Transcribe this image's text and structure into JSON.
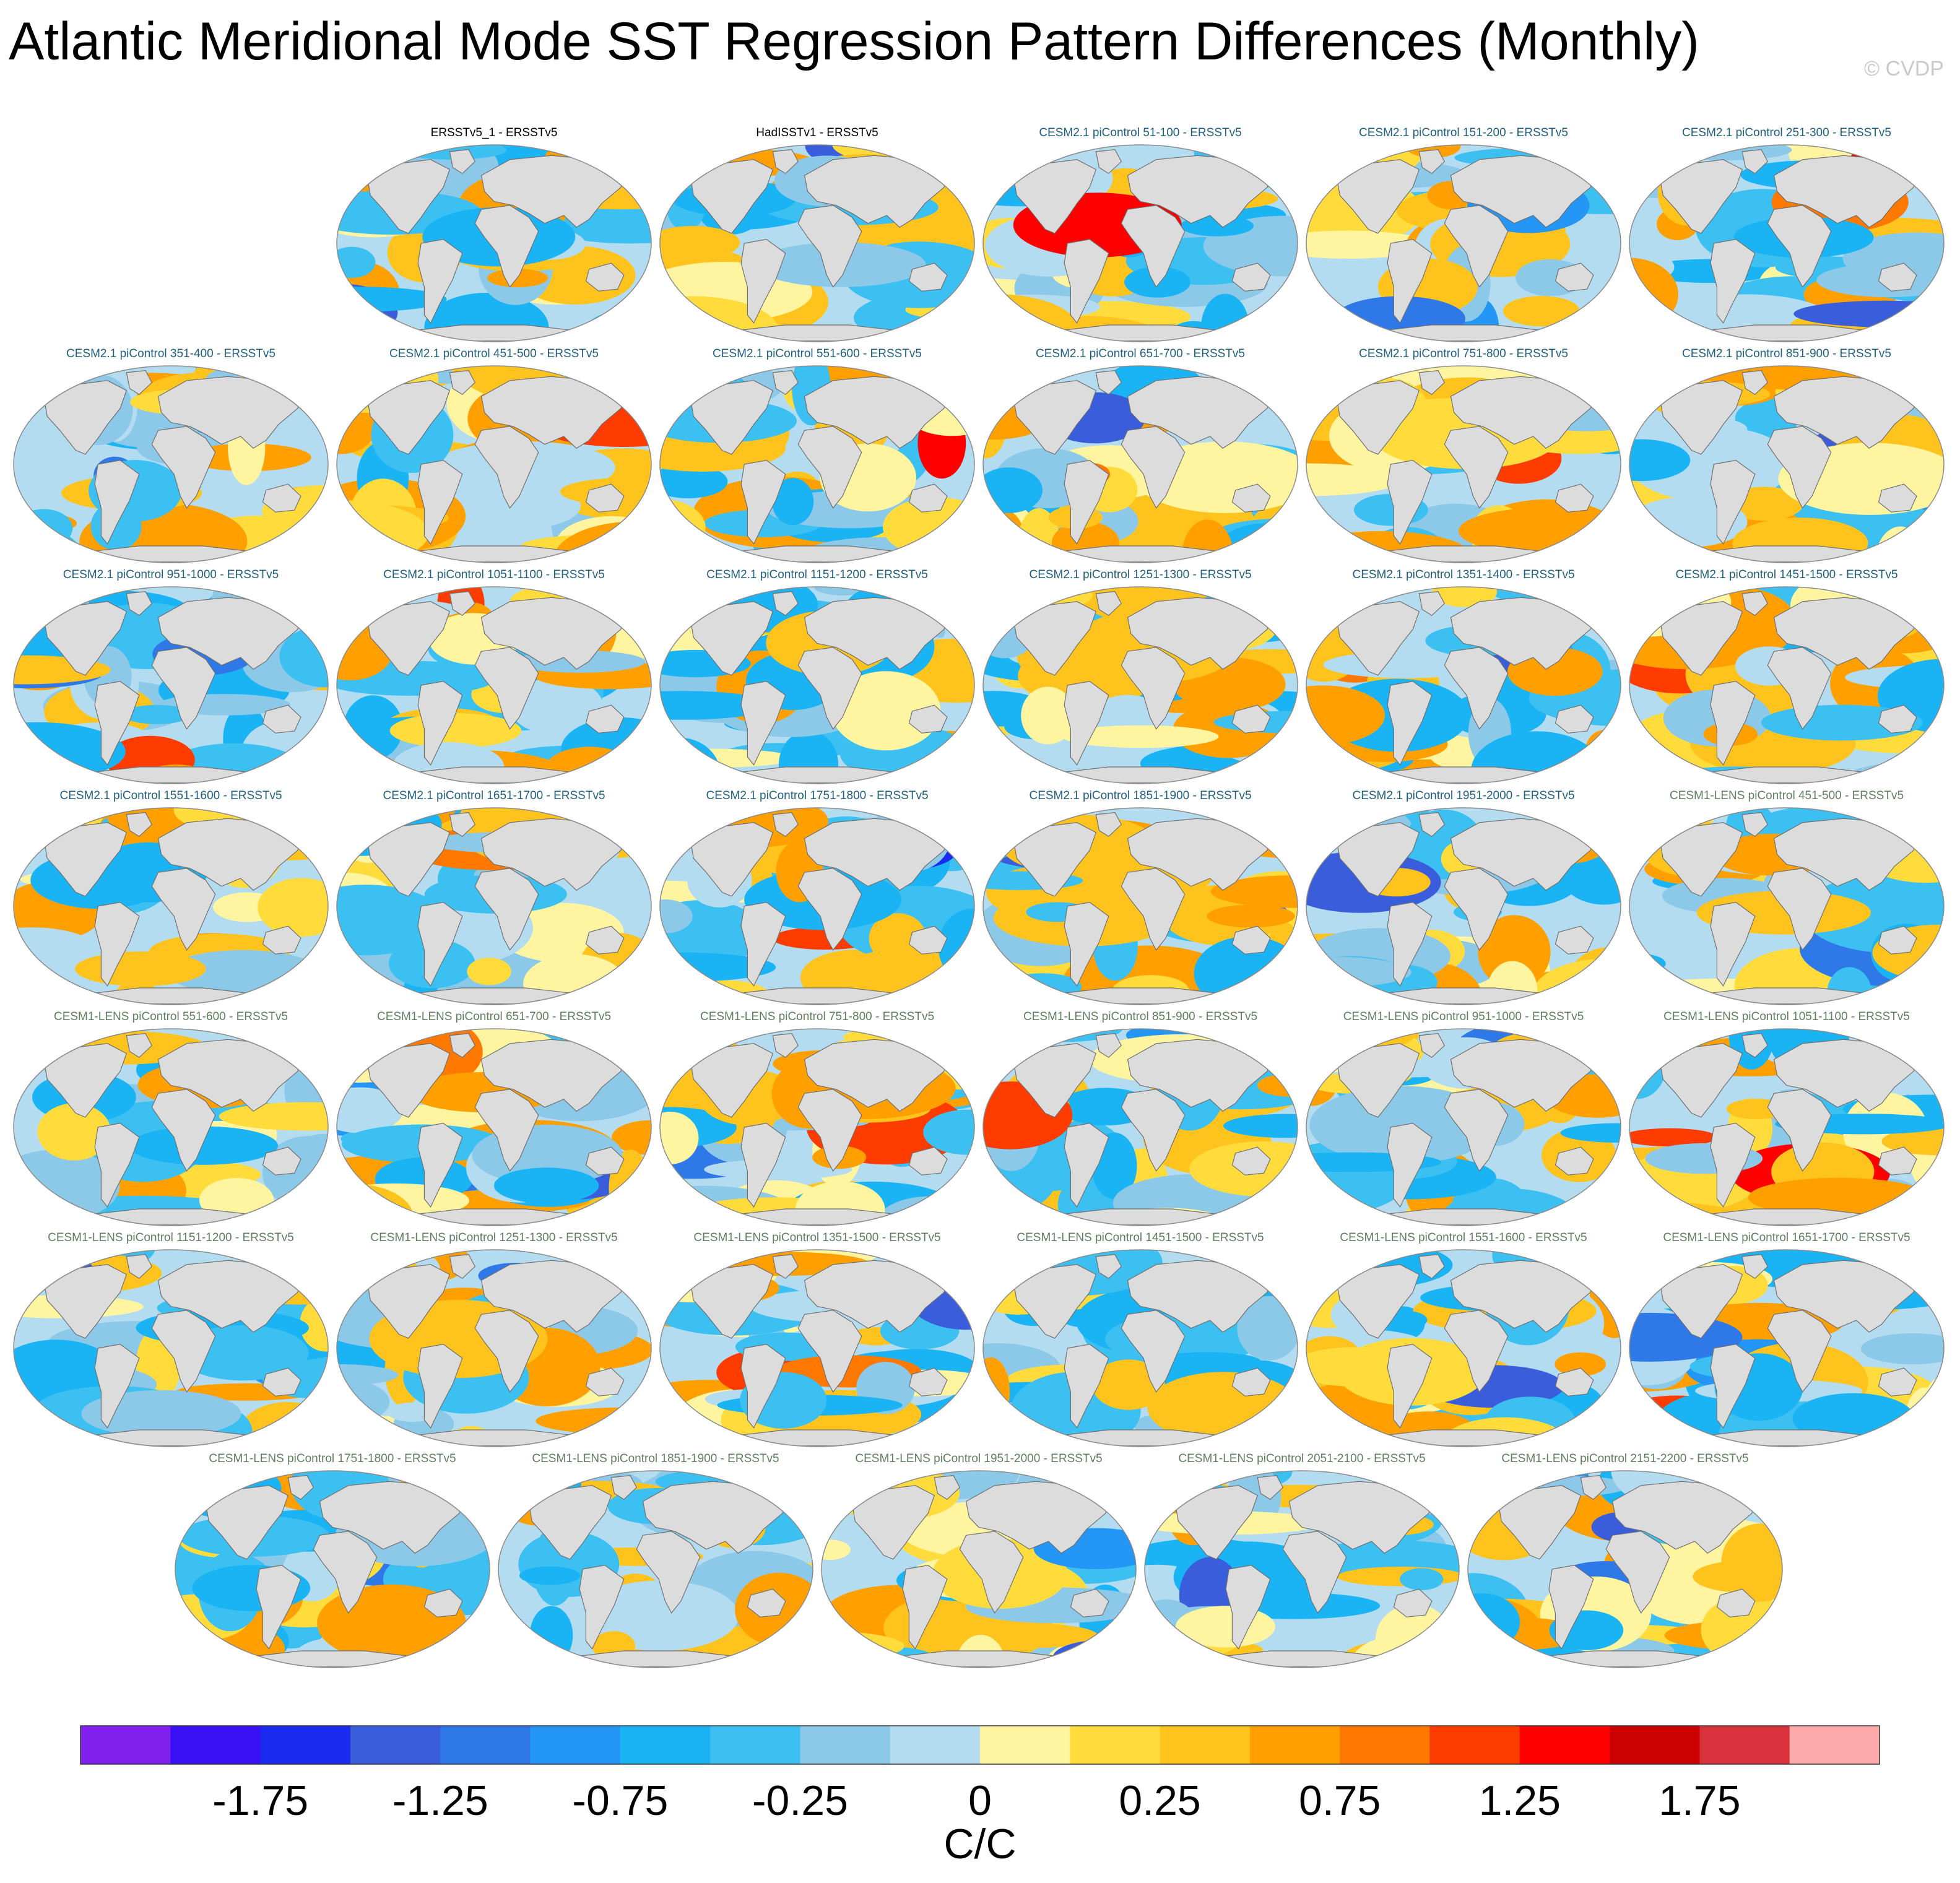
{
  "chart_data": {
    "type": "heatmap",
    "title": "Atlantic Meridional Mode SST Regression Pattern Differences (Monthly)",
    "watermark": "© CVDP",
    "units": "C/C",
    "colorbar": {
      "levels": [
        -2.0,
        -1.75,
        -1.5,
        -1.25,
        -1.0,
        -0.75,
        -0.5,
        -0.25,
        -0.1,
        0.0,
        0.1,
        0.25,
        0.5,
        0.75,
        1.0,
        1.25,
        1.5,
        1.75,
        2.0
      ],
      "tick_labels": [
        "-1.75",
        "-1.25",
        "-0.75",
        "-0.25",
        "0",
        "0.25",
        "0.75",
        "1.25",
        "1.75"
      ],
      "colors": [
        "#8220f0",
        "#3a10f5",
        "#1a2af0",
        "#3a5ddc",
        "#2f78e8",
        "#2496f5",
        "#1ab4f5",
        "#3cc0f2",
        "#8cc8e8",
        "#b4dcf0",
        "#fff5a0",
        "#ffdc3c",
        "#ffc31e",
        "#ffa000",
        "#ff7800",
        "#ff3c00",
        "#ff0000",
        "#cc0000",
        "#d8323c",
        "#ffaaaa"
      ]
    },
    "panels": [
      {
        "title": "ERSSTv5_1 - ERSSTv5",
        "group": "obs"
      },
      {
        "title": "HadISSTv1 - ERSSTv5",
        "group": "obs"
      },
      {
        "title": "CESM2.1 piControl 51-100 - ERSSTv5",
        "group": "cesm2"
      },
      {
        "title": "CESM2.1 piControl 151-200 - ERSSTv5",
        "group": "cesm2"
      },
      {
        "title": "CESM2.1 piControl 251-300 - ERSSTv5",
        "group": "cesm2"
      },
      {
        "title": "CESM2.1 piControl 351-400 - ERSSTv5",
        "group": "cesm2"
      },
      {
        "title": "CESM2.1 piControl 451-500 - ERSSTv5",
        "group": "cesm2"
      },
      {
        "title": "CESM2.1 piControl 551-600 - ERSSTv5",
        "group": "cesm2"
      },
      {
        "title": "CESM2.1 piControl 651-700 - ERSSTv5",
        "group": "cesm2"
      },
      {
        "title": "CESM2.1 piControl 751-800 - ERSSTv5",
        "group": "cesm2"
      },
      {
        "title": "CESM2.1 piControl 851-900 - ERSSTv5",
        "group": "cesm2"
      },
      {
        "title": "CESM2.1 piControl 951-1000 - ERSSTv5",
        "group": "cesm2"
      },
      {
        "title": "CESM2.1 piControl 1051-1100 - ERSSTv5",
        "group": "cesm2"
      },
      {
        "title": "CESM2.1 piControl 1151-1200 - ERSSTv5",
        "group": "cesm2"
      },
      {
        "title": "CESM2.1 piControl 1251-1300 - ERSSTv5",
        "group": "cesm2"
      },
      {
        "title": "CESM2.1 piControl 1351-1400 - ERSSTv5",
        "group": "cesm2"
      },
      {
        "title": "CESM2.1 piControl 1451-1500 - ERSSTv5",
        "group": "cesm2"
      },
      {
        "title": "CESM2.1 piControl 1551-1600 - ERSSTv5",
        "group": "cesm2"
      },
      {
        "title": "CESM2.1 piControl 1651-1700 - ERSSTv5",
        "group": "cesm2"
      },
      {
        "title": "CESM2.1 piControl 1751-1800 - ERSSTv5",
        "group": "cesm2"
      },
      {
        "title": "CESM2.1 piControl 1851-1900 - ERSSTv5",
        "group": "cesm2"
      },
      {
        "title": "CESM2.1 piControl 1951-2000 - ERSSTv5",
        "group": "cesm2"
      },
      {
        "title": "CESM1-LENS piControl 451-500 - ERSSTv5",
        "group": "cesm1"
      },
      {
        "title": "CESM1-LENS piControl 551-600 - ERSSTv5",
        "group": "cesm1"
      },
      {
        "title": "CESM1-LENS piControl 651-700 - ERSSTv5",
        "group": "cesm1"
      },
      {
        "title": "CESM1-LENS piControl 751-800 - ERSSTv5",
        "group": "cesm1"
      },
      {
        "title": "CESM1-LENS piControl 851-900 - ERSSTv5",
        "group": "cesm1"
      },
      {
        "title": "CESM1-LENS piControl 951-1000 - ERSSTv5",
        "group": "cesm1"
      },
      {
        "title": "CESM1-LENS piControl 1051-1100 - ERSSTv5",
        "group": "cesm1"
      },
      {
        "title": "CESM1-LENS piControl 1151-1200 - ERSSTv5",
        "group": "cesm1"
      },
      {
        "title": "CESM1-LENS piControl 1251-1300 - ERSSTv5",
        "group": "cesm1"
      },
      {
        "title": "CESM1-LENS piControl 1351-1500 - ERSSTv5",
        "group": "cesm1"
      },
      {
        "title": "CESM1-LENS piControl 1451-1500 - ERSSTv5",
        "group": "cesm1"
      },
      {
        "title": "CESM1-LENS piControl 1551-1600 - ERSSTv5",
        "group": "cesm1"
      },
      {
        "title": "CESM1-LENS piControl 1651-1700 - ERSSTv5",
        "group": "cesm1"
      },
      {
        "title": "CESM1-LENS piControl 1751-1800 - ERSSTv5",
        "group": "cesm1"
      },
      {
        "title": "CESM1-LENS piControl 1851-1900 - ERSSTv5",
        "group": "cesm1"
      },
      {
        "title": "CESM1-LENS piControl 1951-2000 - ERSSTv5",
        "group": "cesm1"
      },
      {
        "title": "CESM1-LENS piControl 2051-2100 - ERSSTv5",
        "group": "cesm1"
      },
      {
        "title": "CESM1-LENS piControl 2151-2200 - ERSSTv5",
        "group": "cesm1"
      }
    ]
  },
  "title_colors": {
    "obs": "#000000",
    "cesm2": "#1f5f7f",
    "cesm1": "#5f7f5f"
  },
  "map_colors": {
    "land": "#dcdcdc",
    "coast": "#6e6e6e",
    "frame": "#8a8a8a"
  }
}
